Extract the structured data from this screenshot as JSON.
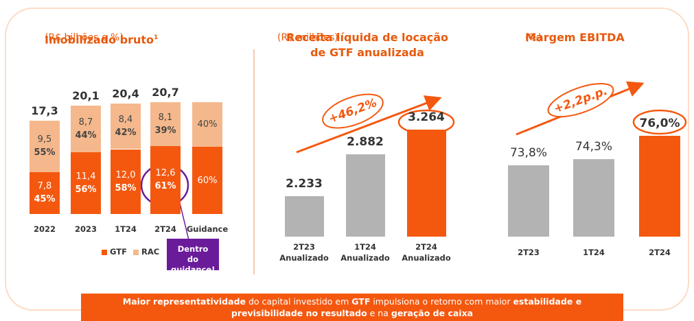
{
  "chart_data": [
    {
      "type": "bar",
      "stacked": true,
      "title": "Imobilizado bruto",
      "title_note": "1",
      "subtitle": "(R$ bilhões e %)",
      "categories": [
        "2022",
        "2023",
        "1T24",
        "2T24",
        "Guidance"
      ],
      "series": [
        {
          "name": "GTF",
          "color": "#f4580f",
          "values": [
            7.8,
            11.4,
            12.0,
            12.6,
            null
          ],
          "value_labels": [
            "7,8",
            "11,4",
            "12,0",
            "12,6",
            null
          ],
          "shares": [
            45,
            56,
            58,
            61,
            60
          ],
          "share_labels": [
            "45%",
            "56%",
            "58%",
            "61%",
            "60%"
          ]
        },
        {
          "name": "RAC",
          "color": "#f5b88c",
          "values": [
            9.5,
            8.7,
            8.4,
            8.1,
            null
          ],
          "value_labels": [
            "9,5",
            "8,7",
            "8,4",
            "8,1",
            null
          ],
          "shares": [
            55,
            44,
            42,
            39,
            40
          ],
          "share_labels": [
            "55%",
            "44%",
            "42%",
            "39%",
            "40%"
          ]
        }
      ],
      "totals": [
        17.3,
        20.1,
        20.4,
        20.7,
        null
      ],
      "total_labels": [
        "17,3",
        "20,1",
        "20,4",
        "20,7",
        null
      ],
      "ylim": [
        0,
        24
      ],
      "annotation": "Dentro do guidance!"
    },
    {
      "type": "bar",
      "title": "Receita líquida de locação de GTF anualizada",
      "subtitle": "(R$ milhões)",
      "categories": [
        "2T23 Anualizado",
        "1T24 Anualizado",
        "2T24 Anualizado"
      ],
      "values": [
        2233,
        2882,
        3264
      ],
      "value_labels": [
        "2.233",
        "2.882",
        "3.264"
      ],
      "colors": [
        "#b3b3b3",
        "#b3b3b3",
        "#f4580f"
      ],
      "ylim": [
        1600,
        3900
      ],
      "annotation": "+46,2%"
    },
    {
      "type": "bar",
      "title": "Margem EBITDA",
      "subtitle": "(%)",
      "categories": [
        "2T23",
        "1T24",
        "2T24"
      ],
      "values": [
        73.8,
        74.3,
        76.0
      ],
      "value_labels": [
        "73,8%",
        "74,3%",
        "76,0%"
      ],
      "colors": [
        "#b3b3b3",
        "#b3b3b3",
        "#f4580f"
      ],
      "ylim": [
        68.5,
        79.5
      ],
      "annotation": "+2,2p.p."
    }
  ],
  "footer": {
    "segments": [
      {
        "text": "Maior representatividade",
        "bold": true
      },
      {
        "text": " do capital investido em ",
        "bold": false
      },
      {
        "text": "GTF",
        "bold": true
      },
      {
        "text": " impulsiona o retorno com maior ",
        "bold": false
      },
      {
        "text": "estabilidade e previsibilidade",
        "bold": true
      },
      {
        "text": " no resultado",
        "bold": true
      },
      {
        "text": " e na ",
        "bold": false
      },
      {
        "text": "geração de caixa",
        "bold": true
      }
    ]
  }
}
